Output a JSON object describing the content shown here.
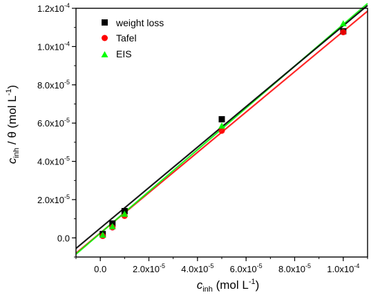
{
  "chart_data": {
    "type": "scatter",
    "title": "",
    "xlabel": {
      "main": "c",
      "sub": "inh",
      "rest": " (mol L",
      "sup": "-1",
      "close": ")"
    },
    "ylabel": {
      "main": "c",
      "sub": "inh",
      "rest": " / θ (mol L",
      "sup": "-1",
      "close": ")"
    },
    "xlim": [
      -1e-05,
      0.00011
    ],
    "ylim": [
      -1e-05,
      0.00012
    ],
    "x_ticks": [
      {
        "value": 0,
        "label": "0.0"
      },
      {
        "value": 2e-05,
        "label": "2.0x10",
        "exp": "-5"
      },
      {
        "value": 4e-05,
        "label": "4.0x10",
        "exp": "-5"
      },
      {
        "value": 6e-05,
        "label": "6.0x10",
        "exp": "-5"
      },
      {
        "value": 8e-05,
        "label": "8.0x10",
        "exp": "-5"
      },
      {
        "value": 0.0001,
        "label": "1.0x10",
        "exp": "-4"
      }
    ],
    "y_ticks": [
      {
        "value": 0,
        "label": "0.0"
      },
      {
        "value": 2e-05,
        "label": "2.0x10",
        "exp": "-5"
      },
      {
        "value": 4e-05,
        "label": "4.0x10",
        "exp": "-5"
      },
      {
        "value": 6e-05,
        "label": "6.0x10",
        "exp": "-5"
      },
      {
        "value": 8e-05,
        "label": "8.0x10",
        "exp": "-5"
      },
      {
        "value": 0.0001,
        "label": "1.0x10",
        "exp": "-4"
      },
      {
        "value": 0.00012,
        "label": "1.2x10",
        "exp": "-4"
      }
    ],
    "legend_position": "top-left",
    "series": [
      {
        "name": "weight loss",
        "marker": "square",
        "color": "#000000",
        "points": [
          [
            1e-06,
            2e-06
          ],
          [
            5e-06,
            7.5e-06
          ],
          [
            1e-05,
            1.4e-05
          ],
          [
            5e-05,
            6.2e-05
          ],
          [
            0.0001,
            0.000108
          ]
        ],
        "fit": [
          [
            -1e-05,
            -5.5e-06
          ],
          [
            0.00011,
            0.0001215
          ]
        ]
      },
      {
        "name": "Tafel",
        "marker": "circle",
        "color": "#ff0000",
        "points": [
          [
            1e-06,
            1e-06
          ],
          [
            5e-06,
            5.5e-06
          ],
          [
            1e-05,
            1.15e-05
          ],
          [
            5e-05,
            5.6e-05
          ],
          [
            0.0001,
            0.0001075
          ]
        ],
        "fit": [
          [
            -1e-05,
            -8e-06
          ],
          [
            0.00011,
            0.0001185
          ]
        ]
      },
      {
        "name": "EIS",
        "marker": "triangle",
        "color": "#00ff00",
        "points": [
          [
            1e-06,
            1.5e-06
          ],
          [
            5e-06,
            6e-06
          ],
          [
            1e-05,
            1.25e-05
          ],
          [
            5e-05,
            5.85e-05
          ],
          [
            0.0001,
            0.000112
          ]
        ],
        "fit": [
          [
            -1e-05,
            -8.5e-06
          ],
          [
            0.00011,
            0.0001225
          ]
        ]
      }
    ]
  }
}
